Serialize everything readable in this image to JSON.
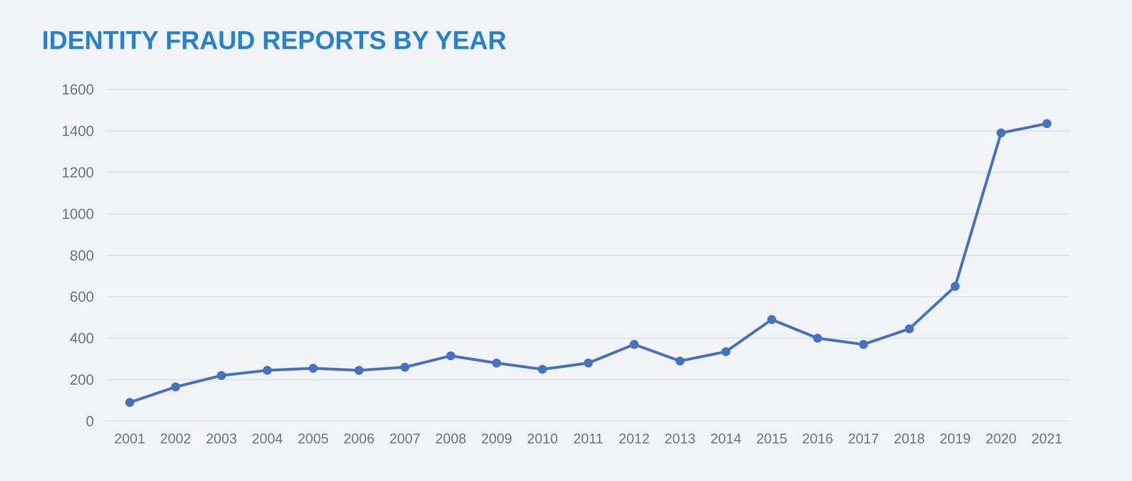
{
  "chart_data": {
    "type": "line",
    "title": "IDENTITY FRAUD REPORTS BY YEAR",
    "categories": [
      "2001",
      "2002",
      "2003",
      "2004",
      "2005",
      "2006",
      "2007",
      "2008",
      "2009",
      "2010",
      "2011",
      "2012",
      "2013",
      "2014",
      "2015",
      "2016",
      "2017",
      "2018",
      "2019",
      "2020",
      "2021"
    ],
    "values": [
      90,
      165,
      220,
      245,
      255,
      245,
      260,
      315,
      280,
      250,
      280,
      370,
      290,
      335,
      490,
      400,
      370,
      445,
      650,
      1390,
      1435
    ],
    "color": "#4472c4",
    "marker": "circle",
    "ylim": [
      0,
      1600
    ],
    "yticks": [
      0,
      200,
      400,
      600,
      800,
      1000,
      1200,
      1400,
      1600
    ],
    "grid": true
  }
}
